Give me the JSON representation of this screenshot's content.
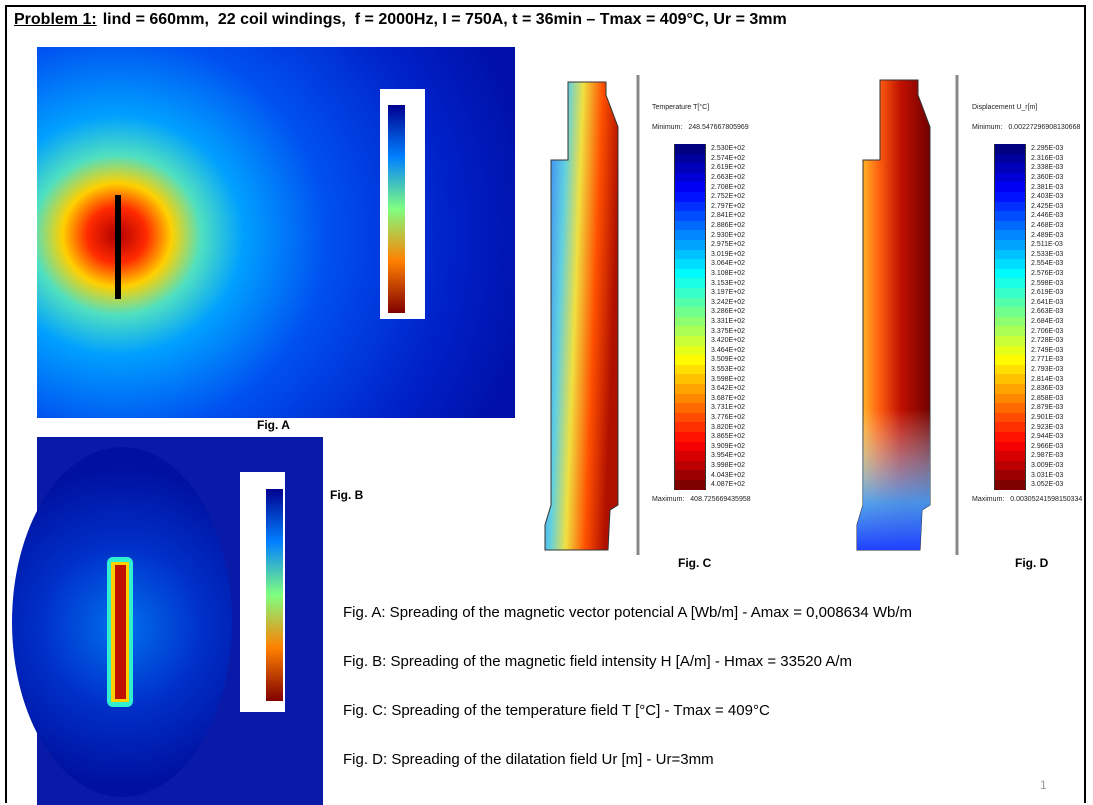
{
  "header": {
    "title_label": "Problem 1:",
    "title_text": "lind = 660mm,  22 coil windings,  f = 2000Hz, I = 750A, t = 36min – Tmax = 409°C, Ur = 3mm"
  },
  "figures": {
    "a": {
      "label": "Fig. A"
    },
    "b": {
      "label": "Fig. B"
    },
    "c": {
      "label": "Fig. C",
      "legend": {
        "title": "Temperature T[°C]",
        "min_label": "Minimum:",
        "min_value": "248.547667805969",
        "max_label": "Maximum:",
        "max_value": "408.725669435958",
        "labels": [
          "2.530E+02",
          "2.574E+02",
          "2.619E+02",
          "2.663E+02",
          "2.708E+02",
          "2.752E+02",
          "2.797E+02",
          "2.841E+02",
          "2.886E+02",
          "2.930E+02",
          "2.975E+02",
          "3.019E+02",
          "3.064E+02",
          "3.108E+02",
          "3.153E+02",
          "3.197E+02",
          "3.242E+02",
          "3.286E+02",
          "3.331E+02",
          "3.375E+02",
          "3.420E+02",
          "3.464E+02",
          "3.509E+02",
          "3.553E+02",
          "3.598E+02",
          "3.642E+02",
          "3.687E+02",
          "3.731E+02",
          "3.776E+02",
          "3.820E+02",
          "3.865E+02",
          "3.909E+02",
          "3.954E+02",
          "3.998E+02",
          "4.043E+02",
          "4.087E+02"
        ]
      }
    },
    "d": {
      "label": "Fig. D",
      "legend": {
        "title": "Displacement U_r[m]",
        "min_label": "Minimum:",
        "min_value": "0.00227296908130668",
        "max_label": "Maximum:",
        "max_value": "0.00305241598150334",
        "labels": [
          "2.295E-03",
          "2.316E-03",
          "2.338E-03",
          "2.360E-03",
          "2.381E-03",
          "2.403E-03",
          "2.425E-03",
          "2.446E-03",
          "2.468E-03",
          "2.489E-03",
          "2.511E-03",
          "2.533E-03",
          "2.554E-03",
          "2.576E-03",
          "2.598E-03",
          "2.619E-03",
          "2.641E-03",
          "2.663E-03",
          "2.684E-03",
          "2.706E-03",
          "2.728E-03",
          "2.749E-03",
          "2.771E-03",
          "2.793E-03",
          "2.814E-03",
          "2.836E-03",
          "2.858E-03",
          "2.879E-03",
          "2.901E-03",
          "2.923E-03",
          "2.944E-03",
          "2.966E-03",
          "2.987E-03",
          "3.009E-03",
          "3.031E-03",
          "3.052E-03"
        ]
      }
    }
  },
  "captions": [
    "Fig. A: Spreading of the magnetic vector potencial A [Wb/m] - Amax = 0,008634 Wb/m",
    "Fig. B: Spreading of the magnetic field intensity H [A/m] - Hmax = 33520 A/m",
    "Fig. C: Spreading of the temperature field T [°C] - Tmax = 409°C",
    "Fig. D: Spreading of the dilatation field Ur [m] - Ur=3mm"
  ],
  "page_number": "1"
}
